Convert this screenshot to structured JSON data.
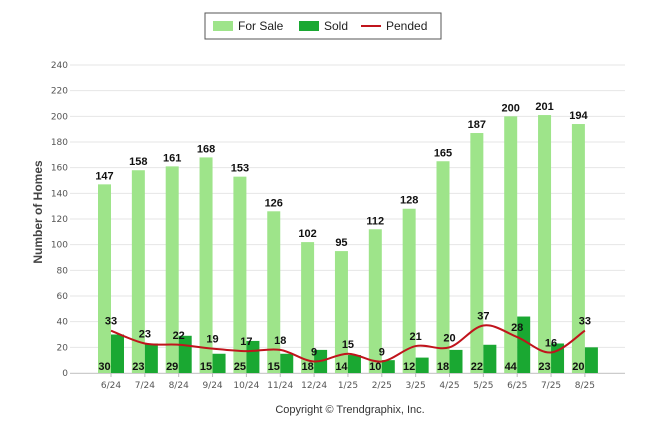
{
  "chart_data": {
    "type": "bar",
    "ylabel": "Number of Homes",
    "ylim": [
      0,
      240
    ],
    "yticks": [
      0,
      20,
      40,
      60,
      80,
      100,
      120,
      140,
      160,
      180,
      200,
      220,
      240
    ],
    "grid": true,
    "legend_position": "top-center",
    "categories": [
      "6/24",
      "7/24",
      "8/24",
      "9/24",
      "10/24",
      "11/24",
      "12/24",
      "1/25",
      "2/25",
      "3/25",
      "4/25",
      "5/25",
      "6/25",
      "7/25",
      "8/25"
    ],
    "series": [
      {
        "name": "For Sale",
        "type": "bar",
        "color": "#9ee48a",
        "values": [
          147,
          158,
          161,
          168,
          153,
          126,
          102,
          95,
          112,
          128,
          165,
          187,
          200,
          201,
          194
        ]
      },
      {
        "name": "Sold",
        "type": "bar",
        "color": "#1aa832",
        "values": [
          30,
          23,
          29,
          15,
          25,
          15,
          18,
          14,
          10,
          12,
          18,
          22,
          44,
          23,
          20
        ]
      },
      {
        "name": "Pended",
        "type": "line",
        "color": "#c0141c",
        "values": [
          33,
          23,
          22,
          19,
          17,
          18,
          9,
          15,
          9,
          21,
          20,
          37,
          28,
          16,
          33
        ]
      }
    ]
  },
  "footer": {
    "copyright": "Copyright © Trendgraphix, Inc."
  }
}
